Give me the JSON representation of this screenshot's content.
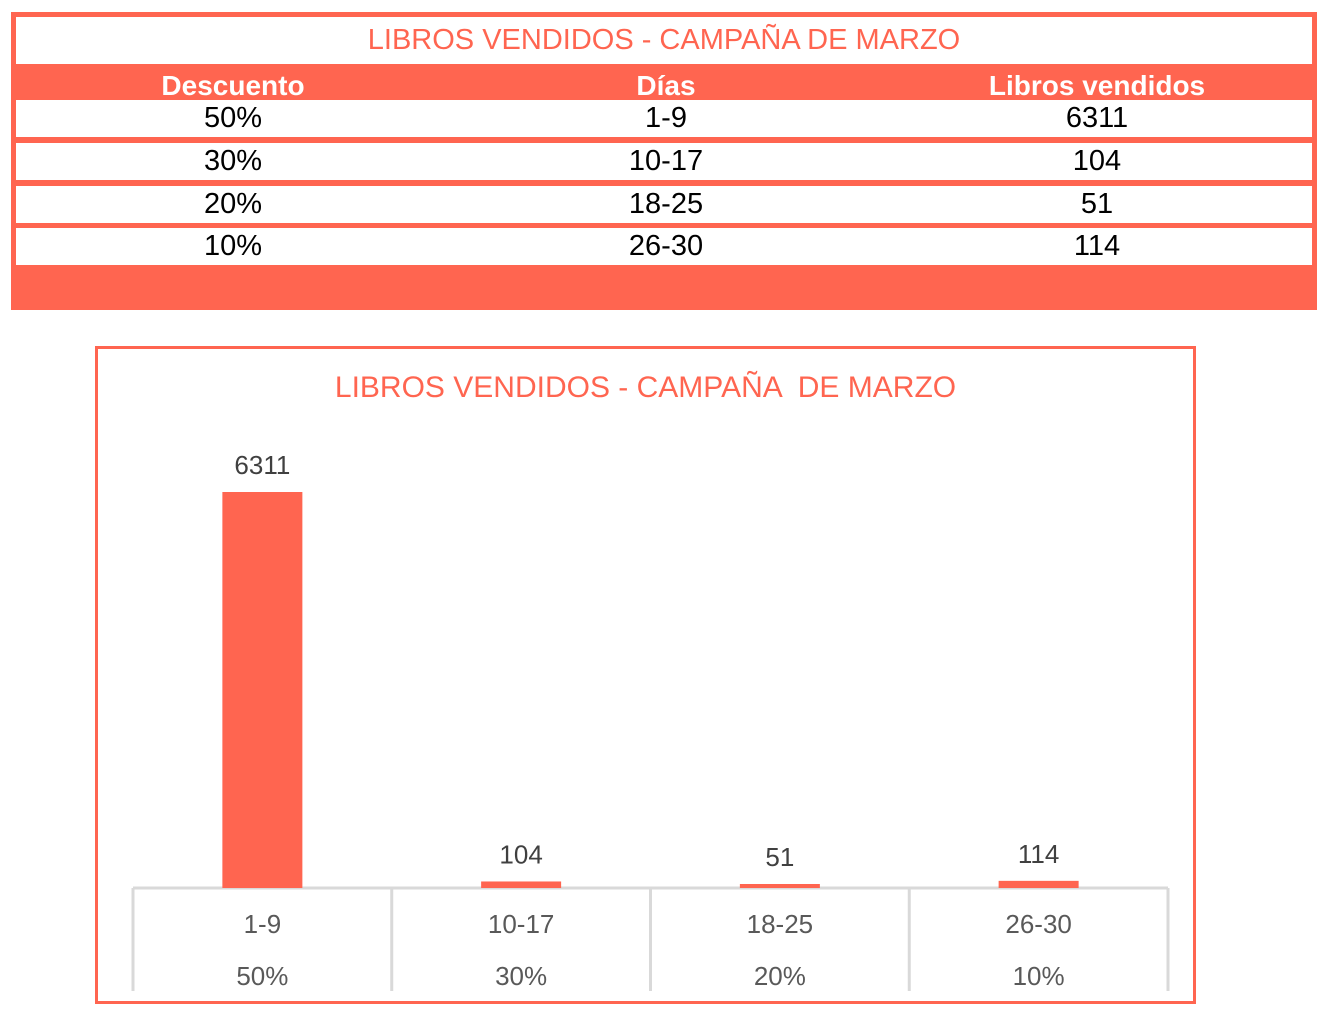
{
  "table": {
    "title": "LIBROS VENDIDOS - CAMPAÑA DE MARZO",
    "headers": [
      "Descuento",
      "Días",
      "Libros vendidos"
    ],
    "rows": [
      [
        "50%",
        "1-9",
        "6311"
      ],
      [
        "30%",
        "10-17",
        "104"
      ],
      [
        "20%",
        "18-25",
        "51"
      ],
      [
        "10%",
        "26-30",
        "114"
      ]
    ]
  },
  "colors": {
    "accent": "#ff6550",
    "axis": "#d9d9d9",
    "label": "#595959"
  },
  "chart_data": {
    "type": "bar",
    "title": "LIBROS VENDIDOS - CAMPAÑA  DE MARZO",
    "categories": [
      "1-9",
      "10-17",
      "18-25",
      "26-30"
    ],
    "category_groups": [
      "50%",
      "30%",
      "20%",
      "10%"
    ],
    "values": [
      6311,
      104,
      51,
      114
    ],
    "data_labels": [
      "6311",
      "104",
      "51",
      "114"
    ],
    "xlabel": "",
    "ylabel": "",
    "ylim": [
      0,
      6311
    ],
    "grid": false,
    "legend": "none"
  }
}
